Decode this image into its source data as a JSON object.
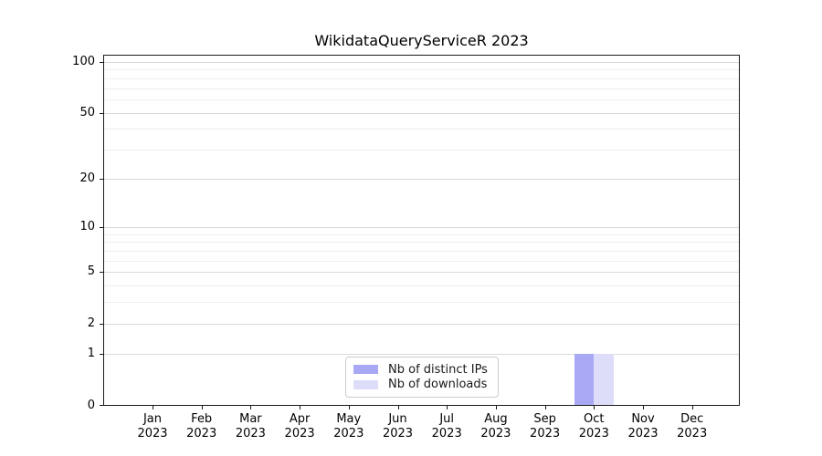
{
  "chart_data": {
    "type": "bar",
    "title": "WikidataQueryServiceR 2023",
    "x_months": [
      "Jan",
      "Feb",
      "Mar",
      "Apr",
      "May",
      "Jun",
      "Jul",
      "Aug",
      "Sep",
      "Oct",
      "Nov",
      "Dec"
    ],
    "x_year": "2023",
    "categories": [
      "Jan 2023",
      "Feb 2023",
      "Mar 2023",
      "Apr 2023",
      "May 2023",
      "Jun 2023",
      "Jul 2023",
      "Aug 2023",
      "Sep 2023",
      "Oct 2023",
      "Nov 2023",
      "Dec 2023"
    ],
    "series": [
      {
        "name": "Nb of distinct IPs",
        "color": "#a8a8f5",
        "values": [
          0,
          0,
          0,
          0,
          0,
          0,
          0,
          0,
          0,
          1,
          0,
          0
        ]
      },
      {
        "name": "Nb of downloads",
        "color": "#ddddf9",
        "values": [
          0,
          0,
          0,
          0,
          0,
          0,
          0,
          0,
          0,
          1,
          0,
          0
        ]
      }
    ],
    "yscale": "log1p",
    "y_ticks": [
      0,
      1,
      2,
      5,
      10,
      20,
      50,
      100
    ],
    "y_minor_gridlines": [
      3,
      4,
      6,
      7,
      8,
      9,
      30,
      40,
      60,
      70,
      80,
      90
    ],
    "ylim": [
      0,
      110
    ],
    "xlabel": "",
    "ylabel": "",
    "grid": true,
    "legend_position": "lower center"
  },
  "colors": {
    "background": "#ffffff",
    "axis": "#1a1a1a",
    "major_gridline": "#d9d9d9",
    "minor_gridline": "#efefef"
  }
}
